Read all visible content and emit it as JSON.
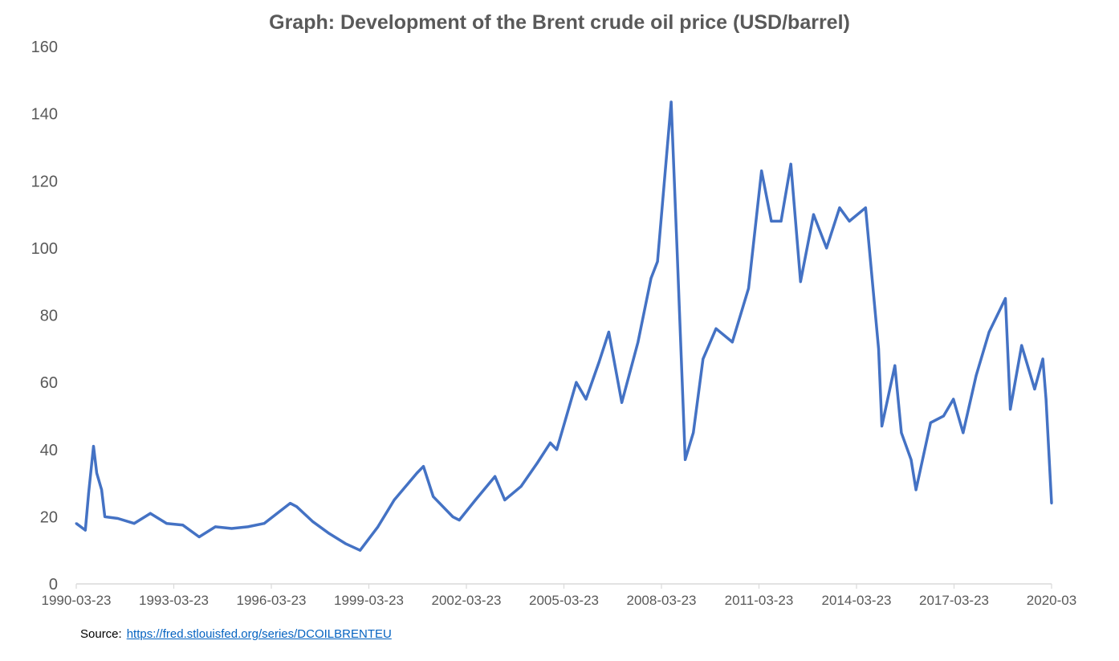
{
  "chart_data": {
    "type": "line",
    "title": "Graph: Development of the Brent crude oil price (USD/barrel)",
    "xlabel": "",
    "ylabel": "",
    "ylim": [
      0,
      160
    ],
    "xlim": [
      1990.22,
      2020.22
    ],
    "grid": false,
    "y_ticks": [
      "0",
      "20",
      "40",
      "60",
      "80",
      "100",
      "120",
      "140",
      "160"
    ],
    "x_ticks": [
      {
        "label": "1990-03-23",
        "x": 1990.22
      },
      {
        "label": "1993-03-23",
        "x": 1993.22
      },
      {
        "label": "1996-03-23",
        "x": 1996.22
      },
      {
        "label": "1999-03-23",
        "x": 1999.22
      },
      {
        "label": "2002-03-23",
        "x": 2002.22
      },
      {
        "label": "2005-03-23",
        "x": 2005.22
      },
      {
        "label": "2008-03-23",
        "x": 2008.22
      },
      {
        "label": "2011-03-23",
        "x": 2011.22
      },
      {
        "label": "2014-03-23",
        "x": 2014.22
      },
      {
        "label": "2017-03-23",
        "x": 2017.22
      },
      {
        "label": "2020-03",
        "x": 2020.22
      }
    ],
    "series": [
      {
        "name": "Brent crude oil price",
        "color": "#4472c4",
        "x": [
          1990.22,
          1990.5,
          1990.6,
          1990.75,
          1990.85,
          1991.0,
          1991.1,
          1991.5,
          1992.0,
          1992.5,
          1993.0,
          1993.5,
          1994.0,
          1994.5,
          1995.0,
          1995.5,
          1996.0,
          1996.8,
          1997.0,
          1997.5,
          1998.0,
          1998.5,
          1998.95,
          1999.5,
          2000.0,
          2000.7,
          2000.9,
          2001.2,
          2001.8,
          2002.0,
          2002.5,
          2003.1,
          2003.4,
          2003.9,
          2004.4,
          2004.8,
          2005.0,
          2005.6,
          2005.9,
          2006.3,
          2006.6,
          2007.0,
          2007.5,
          2007.9,
          2008.1,
          2008.52,
          2008.7,
          2008.95,
          2009.2,
          2009.5,
          2009.9,
          2010.4,
          2010.9,
          2011.3,
          2011.6,
          2011.9,
          2012.2,
          2012.5,
          2012.9,
          2013.3,
          2013.7,
          2014.0,
          2014.5,
          2014.9,
          2015.0,
          2015.4,
          2015.6,
          2015.9,
          2016.05,
          2016.5,
          2016.9,
          2017.2,
          2017.5,
          2017.9,
          2018.3,
          2018.8,
          2018.95,
          2019.3,
          2019.7,
          2019.95,
          2020.05,
          2020.22
        ],
        "y": [
          18,
          16,
          27,
          41,
          33,
          28,
          20,
          19.5,
          18,
          21,
          18,
          17.5,
          14,
          17,
          16.5,
          17,
          18,
          24,
          23,
          18.5,
          15,
          12,
          10,
          17,
          25,
          33,
          35,
          26,
          20,
          19,
          25,
          32,
          25,
          29,
          36,
          42,
          40,
          60,
          55,
          66,
          75,
          54,
          72,
          91,
          96,
          143.5,
          100,
          37,
          45,
          67,
          76,
          72,
          88,
          123,
          108,
          108,
          125,
          90,
          110,
          100,
          112,
          108,
          112,
          70,
          47,
          65,
          45,
          37,
          28,
          48,
          50,
          55,
          45,
          62,
          75,
          85,
          52,
          71,
          58,
          67,
          55,
          24
        ]
      }
    ]
  },
  "source": {
    "label": "Source:",
    "link": "https://fred.stlouisfed.org/series/DCOILBRENTEU"
  }
}
